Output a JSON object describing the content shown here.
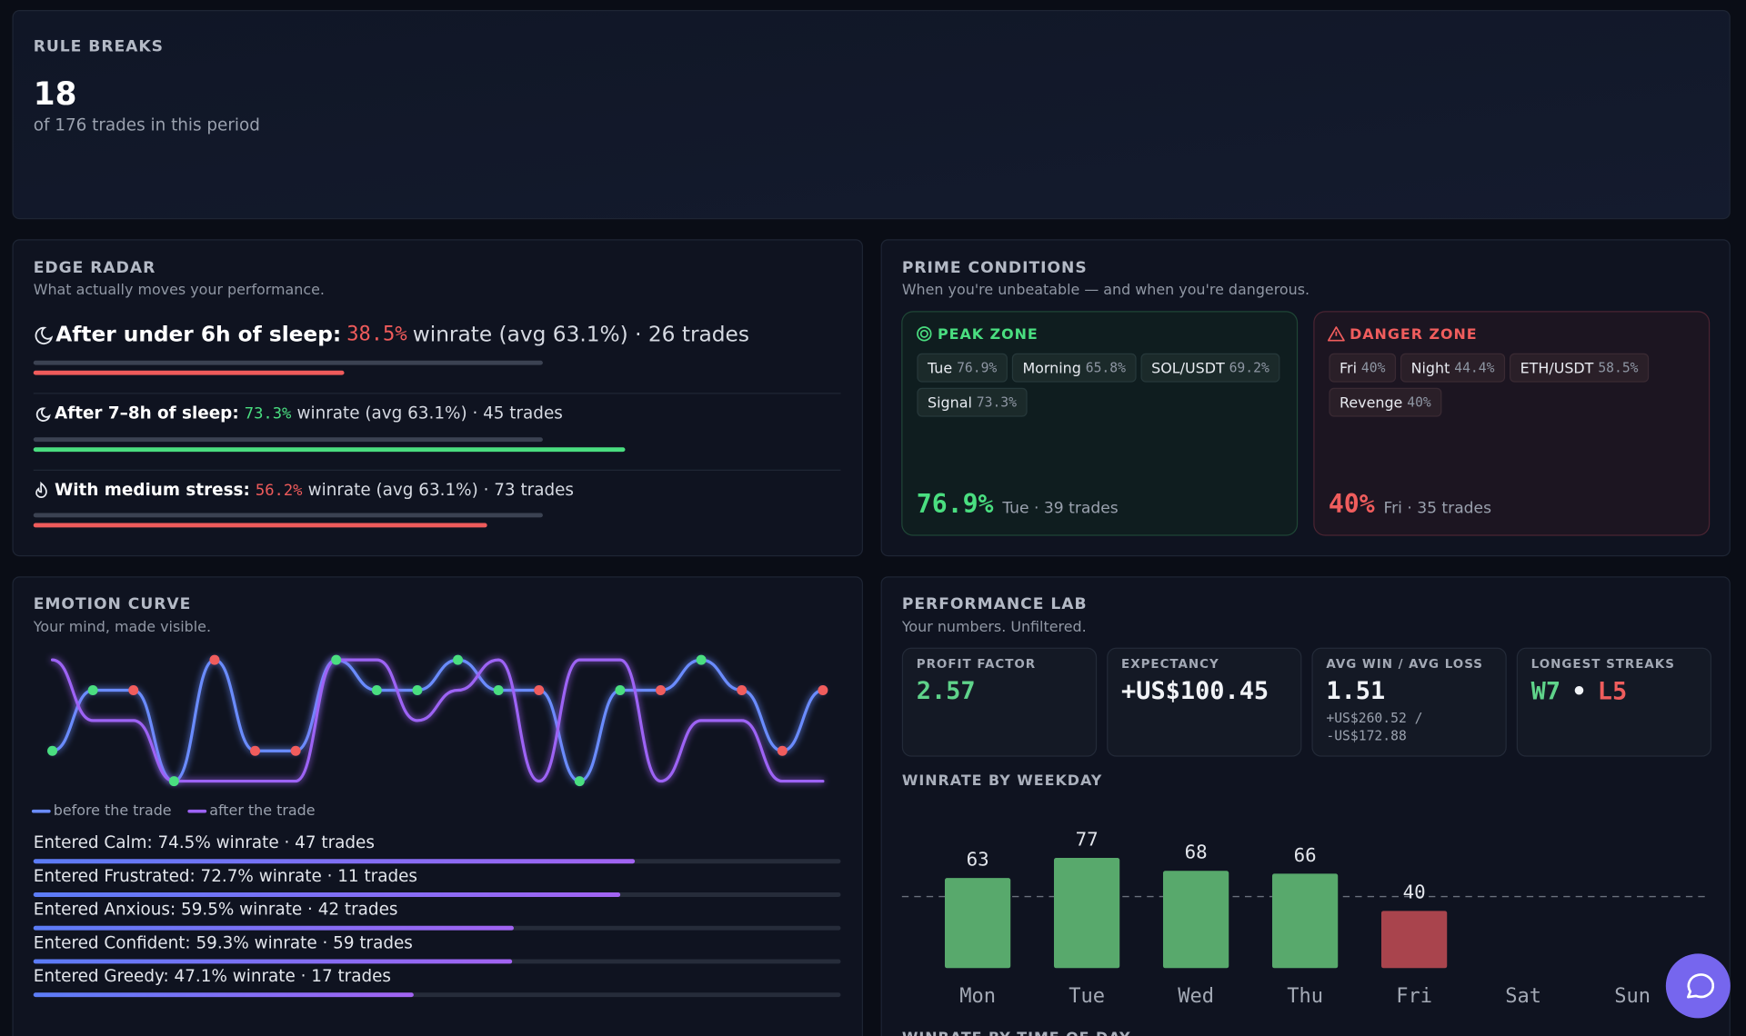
{
  "rule_breaks": {
    "label": "RULE BREAKS",
    "value": 18,
    "note": "of 176 trades in this period"
  },
  "edge_radar": {
    "title": "EDGE RADAR",
    "subtitle": "What actually moves your performance.",
    "items": [
      {
        "label": "After under 6h of sleep:",
        "winrate": 38.5,
        "winrate_label": "38.5%",
        "detail": "winrate (avg 63.1%) · 26 trades",
        "avg": 63.1,
        "color": "#ef5b5b"
      },
      {
        "label": "After 7–8h of sleep:",
        "winrate": 73.3,
        "winrate_label": "73.3%",
        "detail": "winrate (avg 63.1%) · 45 trades",
        "avg": 63.1,
        "color": "#4ade80"
      },
      {
        "label": "With medium stress:",
        "winrate": 56.2,
        "winrate_label": "56.2%",
        "detail": "winrate (avg 63.1%) · 73 trades",
        "avg": 63.1,
        "color": "#ef5b5b"
      }
    ]
  },
  "prime_conditions": {
    "title": "PRIME CONDITIONS",
    "subtitle": "When you're unbeatable — and when you're dangerous.",
    "peak": {
      "title": "PEAK ZONE",
      "color": "#4ade80",
      "tags": [
        {
          "name": "Tue",
          "value": "76.9%"
        },
        {
          "name": "Morning",
          "value": "65.8%"
        },
        {
          "name": "SOL/USDT",
          "value": "69.2%"
        },
        {
          "name": "Signal",
          "value": "73.3%"
        }
      ],
      "headline": "76.9%",
      "detail": "Tue · 39 trades"
    },
    "danger": {
      "title": "DANGER ZONE",
      "color": "#f05d5d",
      "tags": [
        {
          "name": "Fri",
          "value": "40%"
        },
        {
          "name": "Night",
          "value": "44.4%"
        },
        {
          "name": "ETH/USDT",
          "value": "58.5%"
        },
        {
          "name": "Revenge",
          "value": "40%"
        }
      ],
      "headline": "40%",
      "detail": "Fri · 35 trades"
    }
  },
  "emotion_curve": {
    "title": "EMOTION CURVE",
    "subtitle": "Your mind, made visible.",
    "chart": {
      "type": "line",
      "ylim": [
        1,
        5
      ],
      "series": [
        {
          "name": "before the trade",
          "color": "#6b8cff",
          "values": [
            2,
            4,
            4,
            1,
            5,
            2,
            2,
            5,
            4,
            4,
            5,
            4,
            4,
            1,
            4,
            4,
            5,
            4,
            2,
            4
          ]
        },
        {
          "name": "after the trade",
          "color": "#9d63f5",
          "values": [
            5,
            3,
            3,
            1,
            1,
            1,
            1,
            5,
            5,
            3,
            4,
            5,
            1,
            5,
            5,
            1,
            3,
            3,
            1,
            1
          ]
        }
      ],
      "point_colors": [
        "#4ade80",
        "#4ade80",
        "#f05d5d",
        "#4ade80",
        "#f05d5d",
        "#f05d5d",
        "#f05d5d",
        "#4ade80",
        "#4ade80",
        "#4ade80",
        "#4ade80",
        "#4ade80",
        "#f05d5d",
        "#4ade80",
        "#4ade80",
        "#f05d5d",
        "#4ade80",
        "#f05d5d",
        "#f05d5d",
        "#f05d5d"
      ]
    },
    "breakdown": [
      {
        "label": "Entered Calm: 74.5% winrate · 47 trades",
        "value": 74.5
      },
      {
        "label": "Entered Frustrated: 72.7% winrate · 11 trades",
        "value": 72.7
      },
      {
        "label": "Entered Anxious: 59.5% winrate · 42 trades",
        "value": 59.5
      },
      {
        "label": "Entered Confident: 59.3% winrate · 59 trades",
        "value": 59.3
      },
      {
        "label": "Entered Greedy: 47.1% winrate · 17 trades",
        "value": 47.1
      }
    ]
  },
  "performance_lab": {
    "title": "PERFORMANCE LAB",
    "subtitle": "Your numbers. Unfiltered.",
    "stats": [
      {
        "label": "PROFIT FACTOR",
        "value": "2.57",
        "color": "#5fd38a"
      },
      {
        "label": "EXPECTANCY",
        "value": "+US$100.45",
        "color": "#f1f3f7"
      },
      {
        "label": "AVG WIN / AVG LOSS",
        "value": "1.51",
        "color": "#f1f3f7",
        "detail": [
          "+US$260.52 /",
          "-US$172.88"
        ]
      },
      {
        "label": "LONGEST STREAKS",
        "win": "W7",
        "separator": "•",
        "loss": "L5"
      }
    ],
    "weekday_chart": {
      "type": "bar",
      "title": "WINRATE BY WEEKDAY",
      "categories": [
        "Mon",
        "Tue",
        "Wed",
        "Thu",
        "Fri",
        "Sat",
        "Sun"
      ],
      "values": [
        63,
        77,
        68,
        66,
        40,
        null,
        null
      ],
      "ylim": [
        0,
        100
      ],
      "reference_line": 50,
      "color": "#58a96c",
      "below_color": "#a9444d"
    },
    "next_section": "WINRATE BY TIME OF DAY"
  }
}
